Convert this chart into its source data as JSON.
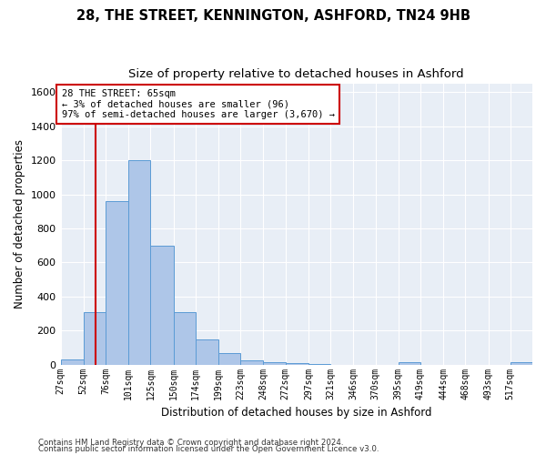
{
  "title1": "28, THE STREET, KENNINGTON, ASHFORD, TN24 9HB",
  "title2": "Size of property relative to detached houses in Ashford",
  "xlabel": "Distribution of detached houses by size in Ashford",
  "ylabel": "Number of detached properties",
  "footnote1": "Contains HM Land Registry data © Crown copyright and database right 2024.",
  "footnote2": "Contains public sector information licensed under the Open Government Licence v3.0.",
  "bin_labels": [
    "27sqm",
    "52sqm",
    "76sqm",
    "101sqm",
    "125sqm",
    "150sqm",
    "174sqm",
    "199sqm",
    "223sqm",
    "248sqm",
    "272sqm",
    "297sqm",
    "321sqm",
    "346sqm",
    "370sqm",
    "395sqm",
    "419sqm",
    "444sqm",
    "468sqm",
    "493sqm",
    "517sqm"
  ],
  "bin_edges": [
    27,
    52,
    76,
    101,
    125,
    150,
    174,
    199,
    223,
    248,
    272,
    297,
    321,
    346,
    370,
    395,
    419,
    444,
    468,
    493,
    517,
    541
  ],
  "bar_heights": [
    30,
    310,
    960,
    1200,
    700,
    310,
    150,
    70,
    25,
    15,
    10,
    5,
    0,
    0,
    0,
    13,
    0,
    0,
    0,
    0,
    13
  ],
  "bar_color": "#aec6e8",
  "bar_edge_color": "#5b9bd5",
  "property_sqm": 65,
  "property_line_color": "#cc0000",
  "annotation_line1": "28 THE STREET: 65sqm",
  "annotation_line2": "← 3% of detached houses are smaller (96)",
  "annotation_line3": "97% of semi-detached houses are larger (3,670) →",
  "annotation_box_color": "#cc0000",
  "ylim": [
    0,
    1650
  ],
  "yticks": [
    0,
    200,
    400,
    600,
    800,
    1000,
    1200,
    1400,
    1600
  ],
  "background_color": "#e8eef6",
  "grid_color": "#d0d8e8",
  "title1_fontsize": 10.5,
  "title2_fontsize": 9.5,
  "xlabel_fontsize": 8.5,
  "ylabel_fontsize": 8.5,
  "fig_bg": "#ffffff"
}
